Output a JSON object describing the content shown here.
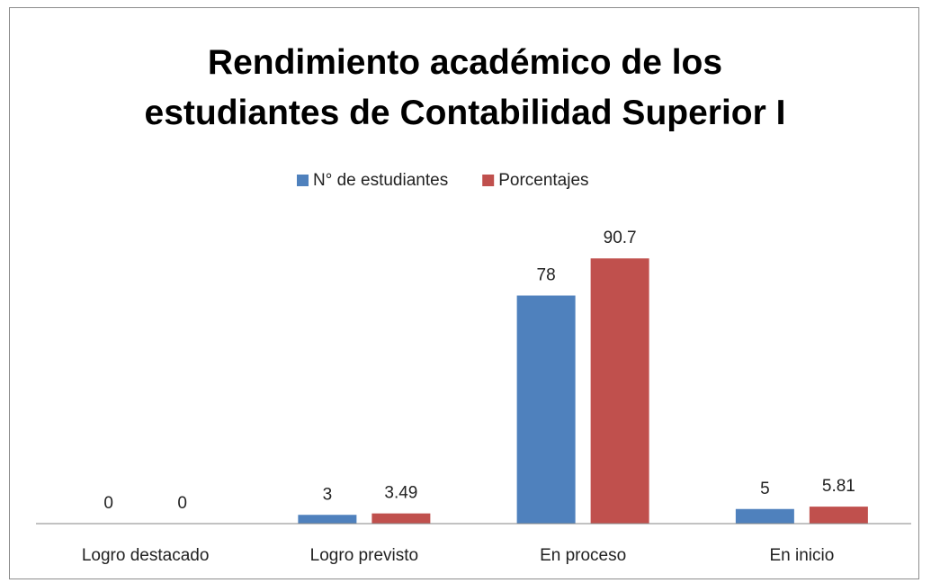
{
  "chart_data": {
    "type": "bar",
    "title": "Rendimiento académico de los estudiantes de Contabilidad Superior I",
    "categories": [
      "Logro destacado",
      "Logro previsto",
      "En proceso",
      "En inicio"
    ],
    "series": [
      {
        "name": "N° de estudiantes",
        "color": "#4f81bd",
        "values": [
          0,
          3,
          78,
          5
        ]
      },
      {
        "name": "Porcentajes",
        "color": "#c0504d",
        "values": [
          0,
          3.49,
          90.7,
          5.81
        ]
      }
    ],
    "ylim": [
      0,
      100
    ],
    "legend": "top"
  }
}
